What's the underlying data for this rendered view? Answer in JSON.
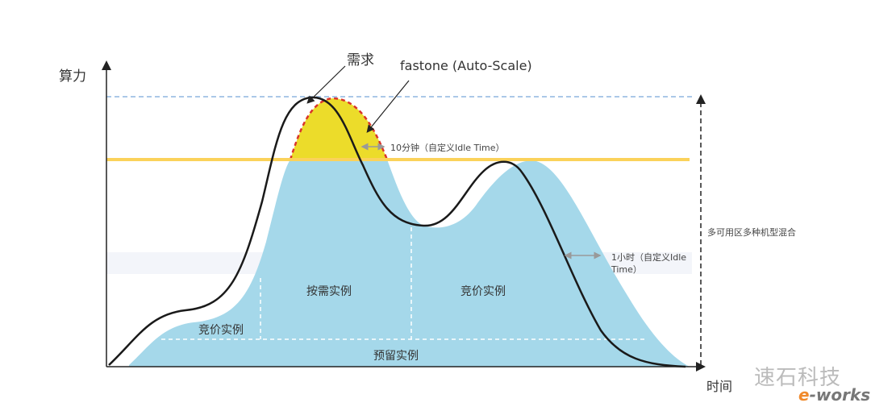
{
  "axes": {
    "y_label": "算力",
    "x_label": "时间"
  },
  "annotations": {
    "demand": "需求",
    "autoscale": "fastone (Auto-Scale)",
    "idle_short": "10分钟（自定义Idle Time）",
    "idle_long_line1": "1小时（自定义Idle",
    "idle_long_line2": "Time）",
    "multi_az": "多可用区多种机型混合"
  },
  "regions": {
    "on_demand": "按需实例",
    "spot_right": "竞价实例",
    "spot_left": "竞价实例",
    "reserved": "预留实例"
  },
  "watermark": {
    "text": "速石科技",
    "logo": "e-works"
  },
  "colors": {
    "capacity_fill": "#a5d8ea",
    "autoscale_fill": "#ecdc2a",
    "autoscale_border": "#d9342b",
    "threshold_line": "#fbd25a",
    "peak_line": "#8fb6e0",
    "demand_line": "#1a1a1a"
  }
}
